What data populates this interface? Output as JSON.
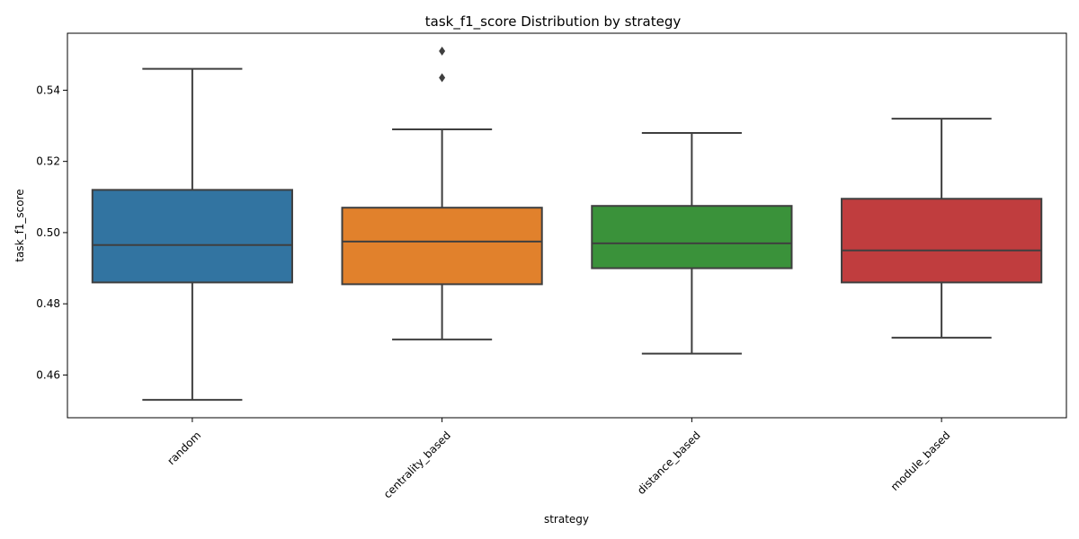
{
  "chart_data": {
    "type": "box",
    "title": "task_f1_score Distribution by strategy",
    "xlabel": "strategy",
    "ylabel": "task_f1_score",
    "ylim": [
      0.448,
      0.556
    ],
    "yticks": [
      0.46,
      0.48,
      0.5,
      0.52,
      0.54
    ],
    "ytick_labels": [
      "0.46",
      "0.48",
      "0.50",
      "0.52",
      "0.54"
    ],
    "grid": false,
    "legend": "none",
    "categories": [
      "random",
      "centrality_based",
      "distance_based",
      "module_based"
    ],
    "boxes": [
      {
        "category": "random",
        "color": "#3274a1",
        "whisker_low": 0.453,
        "q1": 0.486,
        "median": 0.4965,
        "q3": 0.512,
        "whisker_high": 0.546,
        "outliers": []
      },
      {
        "category": "centrality_based",
        "color": "#e1812c",
        "whisker_low": 0.47,
        "q1": 0.4855,
        "median": 0.4975,
        "q3": 0.507,
        "whisker_high": 0.529,
        "outliers": [
          0.5435,
          0.551
        ]
      },
      {
        "category": "distance_based",
        "color": "#3a923a",
        "whisker_low": 0.466,
        "q1": 0.49,
        "median": 0.497,
        "q3": 0.5075,
        "whisker_high": 0.528,
        "outliers": []
      },
      {
        "category": "module_based",
        "color": "#c03d3e",
        "whisker_low": 0.4705,
        "q1": 0.486,
        "median": 0.495,
        "q3": 0.5095,
        "whisker_high": 0.532,
        "outliers": []
      }
    ]
  }
}
